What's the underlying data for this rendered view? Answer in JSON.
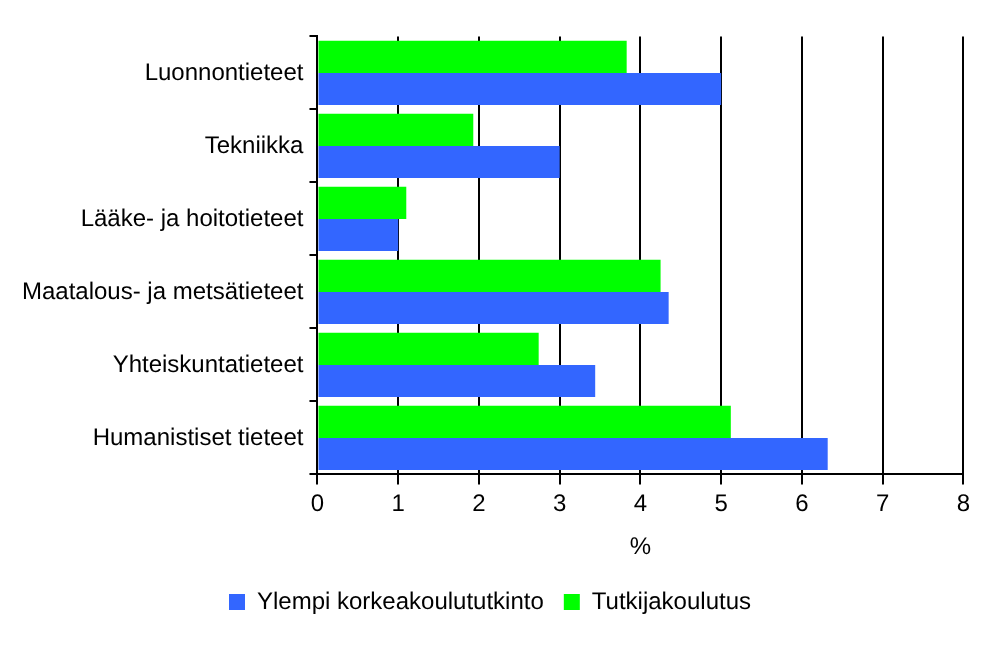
{
  "chart_data": {
    "type": "bar",
    "orientation": "horizontal",
    "categories": [
      "Luonnontieteet",
      "Tekniikka",
      "Lääke- ja hoitotieteet",
      "Maatalous- ja metsätieteet",
      "Yhteiskuntatieteet",
      "Humanistiset tieteet"
    ],
    "series": [
      {
        "name": "Ylempi korkeakoulututkinto",
        "color": "#3366ff",
        "values": [
          5.0,
          3.0,
          1.0,
          4.35,
          3.44,
          6.32
        ]
      },
      {
        "name": "Tutkijakoulutus",
        "color": "#00ff00",
        "values": [
          3.83,
          1.93,
          1.1,
          4.25,
          2.74,
          5.12
        ]
      }
    ],
    "xlabel": "%",
    "xlim": [
      0,
      8
    ],
    "xticks": [
      0,
      1,
      2,
      3,
      4,
      5,
      6,
      7,
      8
    ],
    "grid": "x",
    "legend": "bottom"
  }
}
